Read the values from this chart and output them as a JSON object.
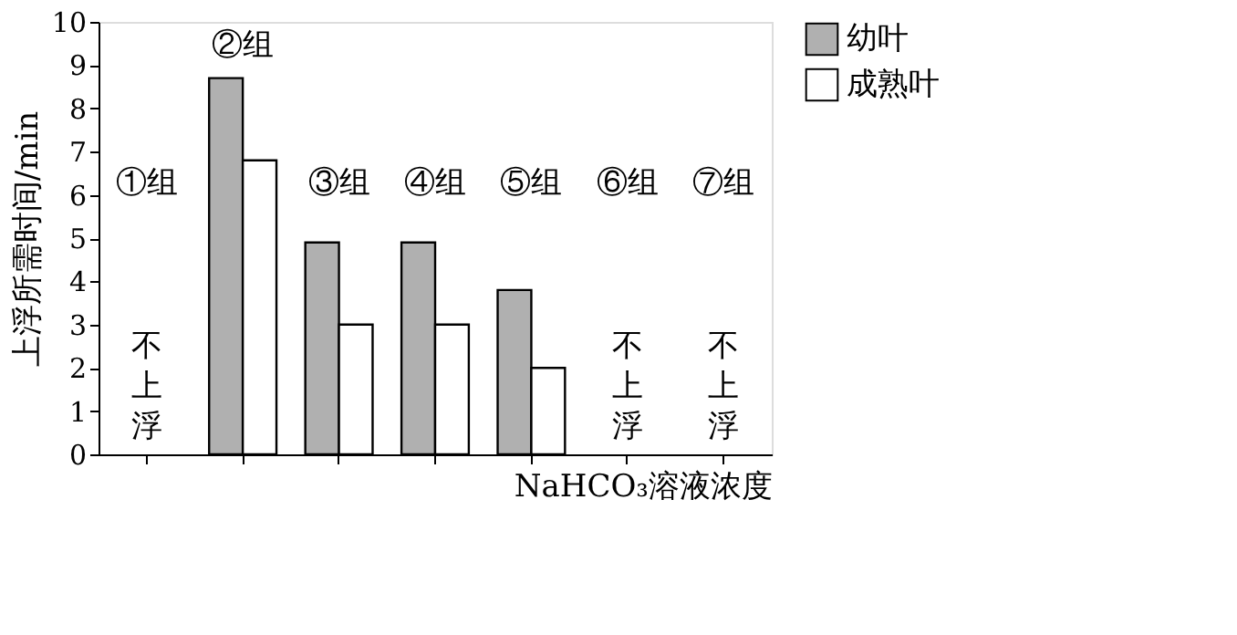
{
  "chart_data": {
    "type": "bar",
    "ylabel": "上浮所需时间/min",
    "xlabel": "NaHCO₃溶液浓度",
    "categories": [
      "①组",
      "②组",
      "③组",
      "④组",
      "⑤组",
      "⑥组",
      "⑦组"
    ],
    "series": [
      {
        "name": "幼叶",
        "color": "#b0b0b0",
        "values": [
          null,
          8.7,
          4.9,
          4.9,
          3.8,
          null,
          null
        ]
      },
      {
        "name": "成熟叶",
        "color": "#ffffff",
        "values": [
          null,
          6.8,
          3.0,
          3.0,
          2.0,
          null,
          null
        ]
      }
    ],
    "ylim": [
      0,
      10
    ],
    "yticks": [
      0,
      1,
      2,
      3,
      4,
      5,
      6,
      7,
      8,
      9,
      10
    ],
    "grid": false,
    "legend": "right",
    "annotations": [
      "不上浮",
      "不上浮",
      "不上浮"
    ]
  }
}
